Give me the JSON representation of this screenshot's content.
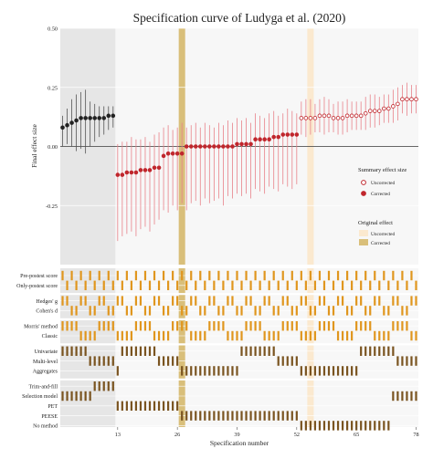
{
  "chart_data": {
    "type": "scatter",
    "title": "Specification curve of Ludyga et al. (2020)",
    "xlabel": "Specification number",
    "ylabel": "Final effect size",
    "x_ticks": [
      13,
      26,
      39,
      52,
      65,
      78
    ],
    "xlim": [
      0.5,
      78.5
    ],
    "ylim": [
      -0.5,
      0.5
    ],
    "y_ticks": [
      {
        "value": 0.5,
        "label": "0.50"
      },
      {
        "value": 0.25,
        "label": "0.25"
      },
      {
        "value": 0.0,
        "label": "0.00"
      },
      {
        "value": -0.25,
        "label": "-0.25"
      }
    ],
    "grid": true,
    "legend_position": "right",
    "legend": {
      "summary_title": "Summary effect size",
      "summary_items": [
        "Uncorrected",
        "Corrected"
      ],
      "original_title": "Original effect",
      "original_items": [
        "Uncorrected",
        "Corrected"
      ]
    },
    "colors": {
      "uncorrected_point": "#c0272d",
      "corrected_point": "#c0272d",
      "fixed_point": "#222222",
      "error_bar_red": "#e8828a",
      "error_bar_grey": "#555555",
      "original_uncorrected": "#fbe9cf",
      "original_corrected": "#d9bf7a",
      "bar_orange": "#e0961e",
      "bar_brown": "#7a5420"
    },
    "original_effect": {
      "uncorrected_x": 55,
      "corrected_x": 27
    },
    "shaded_ranges": [
      [
        0.5,
        12.5
      ]
    ],
    "series": [
      {
        "name": "Uncorrected",
        "style": "open",
        "color": "#c0272d",
        "x": [
          53,
          54,
          55,
          56,
          57,
          58,
          59,
          60,
          61,
          62,
          63,
          64,
          65,
          66,
          67,
          68,
          69,
          70,
          71,
          72,
          73,
          74,
          75,
          76,
          77,
          78
        ],
        "y": [
          0.12,
          0.12,
          0.12,
          0.12,
          0.13,
          0.13,
          0.13,
          0.12,
          0.12,
          0.12,
          0.13,
          0.13,
          0.13,
          0.13,
          0.14,
          0.15,
          0.15,
          0.15,
          0.16,
          0.16,
          0.17,
          0.18,
          0.2,
          0.2,
          0.2,
          0.2
        ],
        "lo": [
          0.05,
          0.04,
          0.05,
          0.06,
          0.06,
          0.05,
          0.06,
          0.06,
          0.05,
          0.05,
          0.06,
          0.07,
          0.07,
          0.07,
          0.07,
          0.08,
          0.08,
          0.09,
          0.1,
          0.1,
          0.1,
          0.11,
          0.14,
          0.13,
          0.14,
          0.14
        ],
        "hi": [
          0.19,
          0.2,
          0.2,
          0.18,
          0.2,
          0.21,
          0.2,
          0.18,
          0.19,
          0.19,
          0.2,
          0.19,
          0.19,
          0.19,
          0.21,
          0.22,
          0.22,
          0.21,
          0.22,
          0.22,
          0.24,
          0.25,
          0.26,
          0.27,
          0.26,
          0.26
        ]
      },
      {
        "name": "Corrected",
        "style": "filled",
        "color": "#c0272d",
        "x": [
          13,
          14,
          15,
          16,
          17,
          18,
          19,
          20,
          21,
          22,
          23,
          24,
          25,
          26,
          27,
          28,
          29,
          30,
          31,
          32,
          33,
          34,
          35,
          36,
          37,
          38,
          39,
          40,
          41,
          42,
          43,
          44,
          45,
          46,
          47,
          48,
          49,
          50,
          51,
          52
        ],
        "y": [
          -0.12,
          -0.12,
          -0.11,
          -0.11,
          -0.11,
          -0.1,
          -0.1,
          -0.1,
          -0.09,
          -0.09,
          -0.04,
          -0.03,
          -0.03,
          -0.03,
          -0.03,
          0.0,
          0.0,
          0.0,
          0.0,
          0.0,
          0.0,
          0.0,
          0.0,
          0.0,
          0.0,
          0.0,
          0.01,
          0.01,
          0.01,
          0.01,
          0.03,
          0.03,
          0.03,
          0.03,
          0.04,
          0.04,
          0.05,
          0.05,
          0.05,
          0.05
        ],
        "lo": [
          -0.4,
          -0.38,
          -0.37,
          -0.36,
          -0.38,
          -0.35,
          -0.34,
          -0.36,
          -0.33,
          -0.31,
          -0.27,
          -0.28,
          -0.25,
          -0.27,
          -0.24,
          -0.27,
          -0.24,
          -0.23,
          -0.25,
          -0.22,
          -0.24,
          -0.23,
          -0.22,
          -0.25,
          -0.21,
          -0.22,
          -0.2,
          -0.21,
          -0.2,
          -0.22,
          -0.18,
          -0.19,
          -0.2,
          -0.17,
          -0.18,
          -0.19,
          -0.16,
          -0.17,
          -0.18,
          -0.16
        ],
        "hi": [
          0.01,
          0.02,
          0.02,
          0.04,
          0.03,
          0.03,
          0.04,
          0.02,
          0.05,
          0.06,
          0.08,
          0.09,
          0.07,
          0.08,
          0.1,
          0.08,
          0.09,
          0.1,
          0.08,
          0.1,
          0.09,
          0.08,
          0.1,
          0.09,
          0.11,
          0.1,
          0.12,
          0.11,
          0.12,
          0.1,
          0.14,
          0.13,
          0.12,
          0.14,
          0.15,
          0.13,
          0.14,
          0.16,
          0.15,
          0.14
        ]
      },
      {
        "name": "",
        "style": "filled-dark",
        "color": "#222222",
        "x": [
          1,
          2,
          3,
          4,
          5,
          6,
          7,
          8,
          9,
          10,
          11,
          12
        ],
        "y": [
          0.08,
          0.09,
          0.1,
          0.11,
          0.12,
          0.12,
          0.12,
          0.12,
          0.12,
          0.12,
          0.13,
          0.13
        ],
        "lo": [
          0.0,
          0.01,
          0.0,
          -0.02,
          -0.01,
          -0.03,
          0.0,
          0.02,
          0.04,
          0.05,
          0.07,
          0.08
        ],
        "hi": [
          0.13,
          0.16,
          0.2,
          0.22,
          0.23,
          0.24,
          0.19,
          0.18,
          0.17,
          0.17,
          0.17,
          0.17
        ]
      }
    ],
    "spec_groups": [
      {
        "labels": [
          "Pre-postest score",
          "Only-postest score"
        ],
        "color": "#e0961e"
      },
      {
        "labels": [
          "Hedges' g",
          "Cohen's d"
        ],
        "color": "#e0961e"
      },
      {
        "labels": [
          "Morris' method",
          "Classic"
        ],
        "color": "#e0961e"
      },
      {
        "labels": [
          "Univariate",
          "Multi-level",
          "Aggregates"
        ],
        "color": "#7a5420"
      },
      {
        "labels": [
          "Trim-and-fill",
          "Selection model",
          "PET",
          "PEESE",
          "No method"
        ],
        "color": "#7a5420"
      }
    ],
    "spec_matrix": {
      "Pre-postest score": [
        1,
        3,
        5,
        7,
        9,
        11,
        13,
        15,
        17,
        19,
        21,
        23,
        25,
        27,
        29,
        31,
        33,
        35,
        37,
        39,
        41,
        43,
        45,
        47,
        49,
        51,
        53,
        55,
        57,
        59,
        61,
        63,
        65,
        67,
        69,
        71,
        73,
        75,
        77
      ],
      "Only-postest score": [
        2,
        4,
        6,
        8,
        10,
        12,
        14,
        16,
        18,
        20,
        22,
        24,
        26,
        28,
        30,
        32,
        34,
        36,
        38,
        40,
        42,
        44,
        46,
        48,
        50,
        52,
        54,
        56,
        58,
        60,
        62,
        64,
        66,
        68,
        70,
        72,
        74,
        76,
        78
      ],
      "Hedges' g": [
        1,
        2,
        5,
        6,
        9,
        10,
        13,
        14,
        17,
        18,
        21,
        22,
        25,
        26,
        29,
        30,
        33,
        34,
        37,
        38,
        41,
        42,
        45,
        46,
        49,
        50,
        53,
        54,
        57,
        58,
        61,
        62,
        65,
        66,
        69,
        70,
        73,
        74,
        77,
        78
      ],
      "Cohen's d": [
        3,
        4,
        7,
        8,
        11,
        12,
        15,
        16,
        19,
        20,
        23,
        24,
        27,
        28,
        31,
        32,
        35,
        36,
        39,
        40,
        43,
        44,
        47,
        48,
        51,
        52,
        55,
        56,
        59,
        60,
        63,
        64,
        67,
        68,
        71,
        72,
        75,
        76
      ],
      "Morris' method": [
        1,
        2,
        3,
        4,
        9,
        10,
        11,
        12,
        17,
        18,
        19,
        20,
        25,
        26,
        27,
        28,
        33,
        34,
        35,
        36,
        41,
        42,
        43,
        44,
        49,
        50,
        51,
        52,
        57,
        58,
        59,
        60,
        65,
        66,
        67,
        68,
        73,
        74,
        75,
        76
      ],
      "Classic": [
        5,
        6,
        7,
        8,
        13,
        14,
        15,
        16,
        21,
        22,
        23,
        24,
        29,
        30,
        31,
        32,
        37,
        38,
        39,
        40,
        45,
        46,
        47,
        48,
        53,
        54,
        55,
        56,
        61,
        62,
        63,
        64,
        69,
        70,
        71,
        72,
        77,
        78
      ],
      "Univariate": [
        1,
        2,
        3,
        4,
        5,
        6,
        14,
        15,
        16,
        17,
        18,
        19,
        20,
        21,
        40,
        41,
        42,
        43,
        44,
        45,
        46,
        47,
        66,
        67,
        68,
        69,
        70,
        71,
        72,
        73
      ],
      "Multi-level": [
        7,
        8,
        9,
        10,
        11,
        12,
        22,
        23,
        24,
        25,
        26,
        48,
        49,
        50,
        51,
        52,
        74,
        75,
        76,
        77,
        78
      ],
      "Aggregates": [
        13,
        27,
        28,
        29,
        30,
        31,
        32,
        33,
        34,
        35,
        36,
        37,
        38,
        39,
        53,
        54,
        55,
        56,
        57,
        58,
        59,
        60,
        61,
        62,
        63,
        64,
        65
      ],
      "Trim-and-fill": [
        8,
        9,
        10,
        11,
        12
      ],
      "Selection model": [
        1,
        2,
        3,
        4,
        5,
        6,
        7,
        73,
        74,
        75,
        76,
        77,
        78
      ],
      "PET": [
        13,
        14,
        15,
        16,
        17,
        18,
        19,
        20,
        21,
        22,
        23,
        24,
        25,
        26
      ],
      "PEESE": [
        27,
        28,
        29,
        30,
        31,
        32,
        33,
        34,
        35,
        36,
        37,
        38,
        39,
        40,
        41,
        42,
        43,
        44,
        45,
        46,
        47,
        48,
        49,
        50,
        51,
        52
      ],
      "No method": [
        53,
        54,
        55,
        56,
        57,
        58,
        59,
        60,
        61,
        62,
        63,
        64,
        65,
        66,
        67,
        68,
        69,
        70,
        71,
        72
      ]
    }
  }
}
